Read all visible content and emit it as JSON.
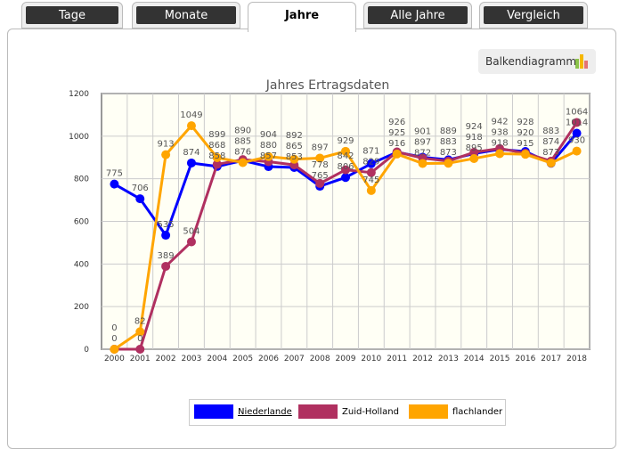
{
  "tabs": [
    {
      "label": "Tage"
    },
    {
      "label": "Monate"
    },
    {
      "label": "Jahre"
    },
    {
      "label": "Alle Jahre"
    },
    {
      "label": "Vergleich"
    }
  ],
  "active_tab": "Jahre",
  "toolbar": {
    "chart_type_button": "Balkendiagramm"
  },
  "chart_data": {
    "type": "line",
    "title": "Jahres Ertragsdaten",
    "categories": [
      "2000",
      "2001",
      "2002",
      "2003",
      "2004",
      "2005",
      "2006",
      "2007",
      "2008",
      "2009",
      "2010",
      "2011",
      "2012",
      "2013",
      "2014",
      "2015",
      "2016",
      "2017",
      "2018"
    ],
    "ylim": [
      0,
      1200
    ],
    "yticks": [
      0,
      200,
      400,
      600,
      800,
      1000,
      1200
    ],
    "grid": true,
    "legend_position": "bottom",
    "series": [
      {
        "name": "Niederlande",
        "color": "#0000ff",
        "values": [
          775,
          706,
          535,
          874,
          858,
          885,
          857,
          853,
          765,
          806,
          871,
          925,
          901,
          889,
          918,
          938,
          928,
          873,
          1014
        ]
      },
      {
        "name": "Zuid-Holland",
        "color": "#b03060",
        "values": [
          0,
          0,
          389,
          504,
          868,
          890,
          880,
          865,
          778,
          842,
          829,
          926,
          897,
          883,
          924,
          942,
          920,
          883,
          1064
        ]
      },
      {
        "name": "flachlander",
        "color": "#ffa500",
        "values": [
          0,
          82,
          913,
          1049,
          899,
          876,
          904,
          892,
          897,
          929,
          745,
          916,
          872,
          873,
          895,
          918,
          915,
          874,
          930
        ]
      }
    ]
  }
}
